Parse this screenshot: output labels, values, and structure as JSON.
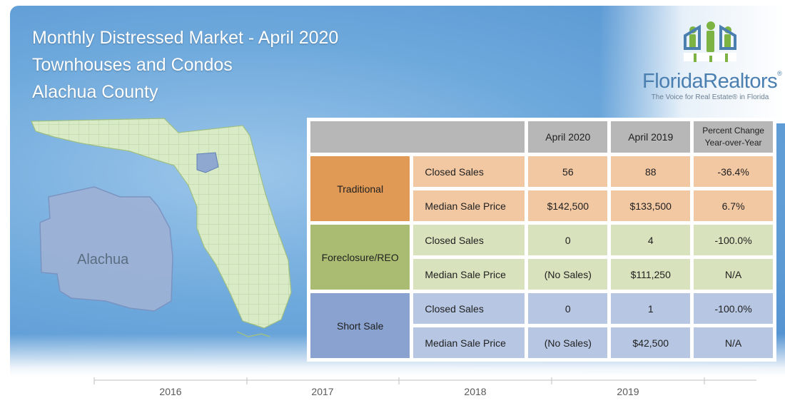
{
  "title": {
    "line1": "Monthly Distressed Market - April 2020",
    "line2": "Townhouses and Condos",
    "line3": "Alachua County"
  },
  "logo": {
    "name_part1": "Florida",
    "name_part2": "Realtors",
    "tagline": "The Voice for Real Estate® in Florida",
    "icon": "people-house-icon",
    "colors": {
      "green": "#7cb342",
      "blue": "#4a7fb0"
    }
  },
  "map": {
    "inset_label": "Alachua",
    "colors": {
      "state": "#d8ebc6",
      "county": "#8fa8d0",
      "inset": "#9db2d6"
    }
  },
  "table": {
    "headers": [
      "April 2020",
      "April 2019"
    ],
    "pct_header": {
      "line1": "Percent Change",
      "line2": "Year-over-Year"
    },
    "groups": [
      {
        "name": "Traditional",
        "color": "#e09a55",
        "rows": [
          {
            "label": "Closed Sales",
            "v2020": "56",
            "v2019": "88",
            "pct": "-36.4%"
          },
          {
            "label": "Median Sale Price",
            "v2020": "$142,500",
            "v2019": "$133,500",
            "pct": "6.7%"
          }
        ]
      },
      {
        "name": "Foreclosure/REO",
        "color": "#a9bc72",
        "rows": [
          {
            "label": "Closed Sales",
            "v2020": "0",
            "v2019": "4",
            "pct": "-100.0%"
          },
          {
            "label": "Median Sale Price",
            "v2020": "(No Sales)",
            "v2019": "$111,250",
            "pct": "N/A"
          }
        ]
      },
      {
        "name": "Short Sale",
        "color": "#8aa2cf",
        "rows": [
          {
            "label": "Closed Sales",
            "v2020": "0",
            "v2019": "1",
            "pct": "-100.0%"
          },
          {
            "label": "Median Sale Price",
            "v2020": "(No Sales)",
            "v2019": "$42,500",
            "pct": "N/A"
          }
        ]
      }
    ]
  },
  "chart_data": {
    "type": "table",
    "columns": [
      "April 2020",
      "April 2019",
      "Percent Change Year-over-Year"
    ],
    "rows": [
      {
        "group": "Traditional",
        "metric": "Closed Sales",
        "values": [
          "56",
          "88",
          "-36.4%"
        ]
      },
      {
        "group": "Traditional",
        "metric": "Median Sale Price",
        "values": [
          "$142,500",
          "$133,500",
          "6.7%"
        ]
      },
      {
        "group": "Foreclosure/REO",
        "metric": "Closed Sales",
        "values": [
          "0",
          "4",
          "-100.0%"
        ]
      },
      {
        "group": "Foreclosure/REO",
        "metric": "Median Sale Price",
        "values": [
          "(No Sales)",
          "$111,250",
          "N/A"
        ]
      },
      {
        "group": "Short Sale",
        "metric": "Closed Sales",
        "values": [
          "0",
          "1",
          "-100.0%"
        ]
      },
      {
        "group": "Short Sale",
        "metric": "Median Sale Price",
        "values": [
          "(No Sales)",
          "$42,500",
          "N/A"
        ]
      }
    ]
  },
  "axis": {
    "labels": [
      "2016",
      "2017",
      "2018",
      "2019"
    ]
  }
}
